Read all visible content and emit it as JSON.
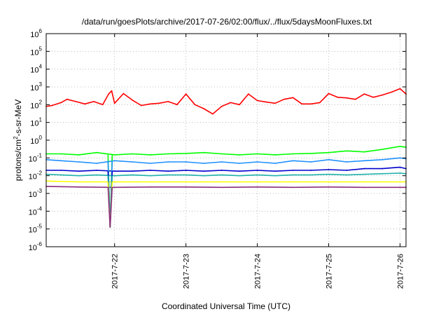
{
  "chart_data": {
    "type": "line",
    "title": "/data/run/goesPlots/archive/2017-07-26/02:00/flux/../flux/5daysMoonFluxes.txt",
    "xlabel": "Coordinated Universal Time (UTC)",
    "ylabel": "protons/cm2-s-sr-MeV",
    "yscale": "log",
    "ylim": [
      1e-06,
      1000000.0
    ],
    "xlim": [
      "2017-07-21 01:00",
      "2017-07-26 02:00"
    ],
    "grid": true,
    "legend": "none",
    "y_ticks": [
      {
        "value": 1e-06,
        "base": "10",
        "exp": "-6"
      },
      {
        "value": 1e-05,
        "base": "10",
        "exp": "-5"
      },
      {
        "value": 0.0001,
        "base": "10",
        "exp": "-4"
      },
      {
        "value": 0.001,
        "base": "10",
        "exp": "-3"
      },
      {
        "value": 0.01,
        "base": "10",
        "exp": "-2"
      },
      {
        "value": 0.1,
        "base": "10",
        "exp": "-1"
      },
      {
        "value": 1,
        "base": "10",
        "exp": "0"
      },
      {
        "value": 10,
        "base": "10",
        "exp": "1"
      },
      {
        "value": 100,
        "base": "10",
        "exp": "2"
      },
      {
        "value": 1000,
        "base": "10",
        "exp": "3"
      },
      {
        "value": 10000,
        "base": "10",
        "exp": "4"
      },
      {
        "value": 100000,
        "base": "10",
        "exp": "5"
      },
      {
        "value": 1000000,
        "base": "10",
        "exp": "6"
      }
    ],
    "x_ticks": [
      {
        "value": "2017-07-22 00:00",
        "label": "2017-7-22"
      },
      {
        "value": "2017-07-23 00:00",
        "label": "2017-7-23"
      },
      {
        "value": "2017-07-24 00:00",
        "label": "2017-7-24"
      },
      {
        "value": "2017-07-25 00:00",
        "label": "2017-7-25"
      },
      {
        "value": "2017-07-26 00:00",
        "label": "2017-7-26"
      }
    ],
    "series": [
      {
        "color": "#ff0000",
        "x": [
          "2017-07-21 01:00",
          "2017-07-21 03:00",
          "2017-07-21 06:00",
          "2017-07-21 08:00",
          "2017-07-21 11:00",
          "2017-07-21 14:00",
          "2017-07-21 17:00",
          "2017-07-21 20:00",
          "2017-07-21 22:00",
          "2017-07-21 23:00",
          "2017-07-22 00:00",
          "2017-07-22 03:00",
          "2017-07-22 06:00",
          "2017-07-22 09:00",
          "2017-07-22 12:00",
          "2017-07-22 15:00",
          "2017-07-22 18:00",
          "2017-07-22 21:00",
          "2017-07-23 00:00",
          "2017-07-23 03:00",
          "2017-07-23 06:00",
          "2017-07-23 09:00",
          "2017-07-23 12:00",
          "2017-07-23 15:00",
          "2017-07-23 18:00",
          "2017-07-23 21:00",
          "2017-07-24 00:00",
          "2017-07-24 03:00",
          "2017-07-24 06:00",
          "2017-07-24 09:00",
          "2017-07-24 12:00",
          "2017-07-24 15:00",
          "2017-07-24 18:00",
          "2017-07-24 21:00",
          "2017-07-25 00:00",
          "2017-07-25 03:00",
          "2017-07-25 06:00",
          "2017-07-25 09:00",
          "2017-07-25 12:00",
          "2017-07-25 15:00",
          "2017-07-25 18:00",
          "2017-07-25 21:00",
          "2017-07-26 00:00",
          "2017-07-26 02:00"
        ],
        "y": [
          80,
          90,
          130,
          200,
          150,
          110,
          150,
          100,
          400,
          600,
          120,
          420,
          180,
          90,
          110,
          120,
          150,
          100,
          400,
          100,
          60,
          30,
          80,
          130,
          100,
          400,
          170,
          140,
          120,
          200,
          250,
          110,
          110,
          130,
          420,
          260,
          240,
          200,
          400,
          260,
          350,
          500,
          800,
          400
        ]
      },
      {
        "color": "#00ff00",
        "x": [
          "2017-07-21 01:00",
          "2017-07-21 06:00",
          "2017-07-21 12:00",
          "2017-07-21 18:00",
          "2017-07-22 00:00",
          "2017-07-22 06:00",
          "2017-07-22 12:00",
          "2017-07-22 18:00",
          "2017-07-23 00:00",
          "2017-07-23 06:00",
          "2017-07-23 12:00",
          "2017-07-23 18:00",
          "2017-07-24 00:00",
          "2017-07-24 06:00",
          "2017-07-24 12:00",
          "2017-07-24 18:00",
          "2017-07-25 00:00",
          "2017-07-25 06:00",
          "2017-07-25 12:00",
          "2017-07-25 18:00",
          "2017-07-26 00:00",
          "2017-07-26 02:00"
        ],
        "y": [
          0.17,
          0.17,
          0.15,
          0.2,
          0.15,
          0.17,
          0.15,
          0.17,
          0.18,
          0.2,
          0.17,
          0.15,
          0.17,
          0.15,
          0.17,
          0.18,
          0.2,
          0.25,
          0.22,
          0.3,
          0.45,
          0.4
        ]
      },
      {
        "color": "#1e90ff",
        "x": [
          "2017-07-21 01:00",
          "2017-07-21 06:00",
          "2017-07-21 12:00",
          "2017-07-21 18:00",
          "2017-07-22 00:00",
          "2017-07-22 06:00",
          "2017-07-22 12:00",
          "2017-07-22 18:00",
          "2017-07-23 00:00",
          "2017-07-23 06:00",
          "2017-07-23 12:00",
          "2017-07-23 18:00",
          "2017-07-24 00:00",
          "2017-07-24 06:00",
          "2017-07-24 12:00",
          "2017-07-24 18:00",
          "2017-07-25 00:00",
          "2017-07-25 06:00",
          "2017-07-25 12:00",
          "2017-07-25 18:00",
          "2017-07-26 00:00",
          "2017-07-26 02:00"
        ],
        "y": [
          0.08,
          0.07,
          0.06,
          0.05,
          0.07,
          0.06,
          0.05,
          0.06,
          0.06,
          0.05,
          0.06,
          0.05,
          0.06,
          0.05,
          0.07,
          0.06,
          0.08,
          0.06,
          0.07,
          0.08,
          0.1,
          0.09
        ]
      },
      {
        "color": "#0000cd",
        "x": [
          "2017-07-21 01:00",
          "2017-07-21 06:00",
          "2017-07-21 12:00",
          "2017-07-21 18:00",
          "2017-07-22 00:00",
          "2017-07-22 06:00",
          "2017-07-22 12:00",
          "2017-07-22 18:00",
          "2017-07-23 00:00",
          "2017-07-23 06:00",
          "2017-07-23 12:00",
          "2017-07-23 18:00",
          "2017-07-24 00:00",
          "2017-07-24 06:00",
          "2017-07-24 12:00",
          "2017-07-24 18:00",
          "2017-07-25 00:00",
          "2017-07-25 06:00",
          "2017-07-25 12:00",
          "2017-07-25 18:00",
          "2017-07-26 00:00",
          "2017-07-26 02:00"
        ],
        "y": [
          0.02,
          0.02,
          0.018,
          0.02,
          0.018,
          0.018,
          0.02,
          0.018,
          0.02,
          0.018,
          0.02,
          0.018,
          0.02,
          0.018,
          0.02,
          0.02,
          0.022,
          0.02,
          0.025,
          0.025,
          0.03,
          0.025
        ]
      },
      {
        "color": "#20b2aa",
        "x": [
          "2017-07-21 01:00",
          "2017-07-21 06:00",
          "2017-07-21 12:00",
          "2017-07-21 18:00",
          "2017-07-22 00:00",
          "2017-07-22 06:00",
          "2017-07-22 12:00",
          "2017-07-22 18:00",
          "2017-07-23 00:00",
          "2017-07-23 06:00",
          "2017-07-23 12:00",
          "2017-07-23 18:00",
          "2017-07-24 00:00",
          "2017-07-24 06:00",
          "2017-07-24 12:00",
          "2017-07-24 18:00",
          "2017-07-25 00:00",
          "2017-07-25 06:00",
          "2017-07-25 12:00",
          "2017-07-25 18:00",
          "2017-07-26 00:00",
          "2017-07-26 02:00"
        ],
        "y": [
          0.012,
          0.011,
          0.01,
          0.011,
          0.01,
          0.011,
          0.01,
          0.011,
          0.011,
          0.01,
          0.011,
          0.01,
          0.011,
          0.01,
          0.011,
          0.011,
          0.012,
          0.011,
          0.012,
          0.013,
          0.014,
          0.013
        ]
      },
      {
        "color": "#ffff00",
        "x": [
          "2017-07-21 01:00",
          "2017-07-21 12:00",
          "2017-07-22 00:00",
          "2017-07-22 12:00",
          "2017-07-23 00:00",
          "2017-07-23 12:00",
          "2017-07-24 00:00",
          "2017-07-24 12:00",
          "2017-07-25 00:00",
          "2017-07-25 12:00",
          "2017-07-26 00:00",
          "2017-07-26 02:00"
        ],
        "y": [
          0.005,
          0.0045,
          0.0045,
          0.0045,
          0.0045,
          0.0045,
          0.0045,
          0.0045,
          0.0045,
          0.0045,
          0.0045,
          0.0045
        ]
      },
      {
        "color": "#8b2d7e",
        "x": [
          "2017-07-21 01:00",
          "2017-07-21 12:00",
          "2017-07-22 00:00",
          "2017-07-22 12:00",
          "2017-07-23 00:00",
          "2017-07-23 12:00",
          "2017-07-24 00:00",
          "2017-07-24 12:00",
          "2017-07-25 00:00",
          "2017-07-25 12:00",
          "2017-07-26 00:00",
          "2017-07-26 02:00"
        ],
        "y": [
          0.0025,
          0.0023,
          0.0022,
          0.0023,
          0.0023,
          0.0022,
          0.0023,
          0.0022,
          0.0023,
          0.0022,
          0.0022,
          0.0022
        ]
      }
    ],
    "events": [
      {
        "x": "2017-07-21 22:30",
        "low": 1.2e-05
      }
    ]
  }
}
